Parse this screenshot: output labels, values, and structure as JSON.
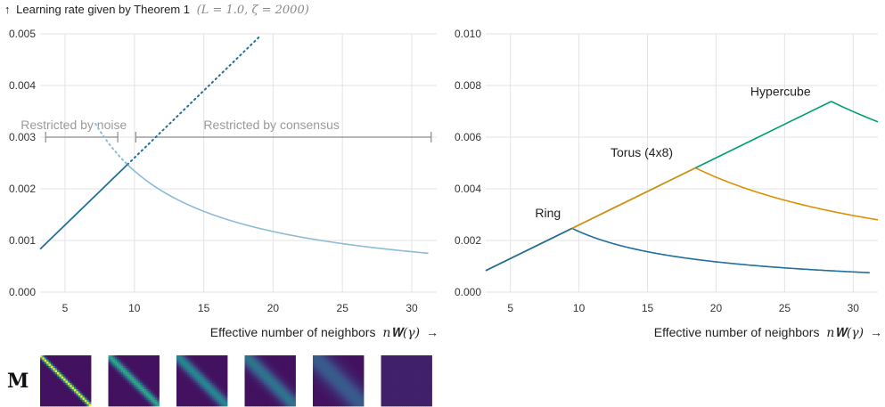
{
  "chart_data": [
    {
      "type": "line",
      "title_arrow": "↑",
      "title": "Learning rate given by Theorem 1",
      "title_math": "(L = 1.0, ζ = 2000)",
      "xlabel": "Effective number of neighbors",
      "xlabel_math": "n𝐖(γ)",
      "xlabel_arrow": "→",
      "xlim": [
        3.2,
        31.8
      ],
      "ylim": [
        0,
        0.005
      ],
      "xticks": [
        5,
        10,
        15,
        20,
        25,
        30
      ],
      "xtick_labels": [
        "5",
        "10",
        "15",
        "20",
        "25",
        "30"
      ],
      "yticks": [
        0,
        0.001,
        0.002,
        0.003,
        0.004,
        0.005
      ],
      "ytick_labels": [
        "0.000",
        "0.001",
        "0.002",
        "0.003",
        "0.004",
        "0.005"
      ],
      "grid": true,
      "peak_x": 9.5,
      "peak_y": 0.00247,
      "noise_line": {
        "x_start": 3.2,
        "x_end": 9.5,
        "color": "#1f6f9f"
      },
      "noise_line_extension": {
        "x_start": 9.5,
        "x_end": 20.0,
        "color": "#1f6f9f",
        "dashed": true
      },
      "consensus_curve": {
        "x_start": 9.5,
        "x_end": 31.2,
        "color": "#8bbcd6"
      },
      "consensus_curve_extension": {
        "x_start": 7.2,
        "x_end": 9.5,
        "color": "#8bbcd6",
        "dashed": true
      },
      "annotations": [
        {
          "text": "Restricted by noise",
          "x_from": 3.6,
          "x_to": 8.8,
          "y": 0.003
        },
        {
          "text": "Restricted by consensus",
          "x_from": 10.1,
          "x_to": 31.4,
          "y": 0.003
        }
      ]
    },
    {
      "type": "line",
      "xlabel": "Effective number of neighbors",
      "xlabel_math": "n𝐖(γ)",
      "xlabel_arrow": "→",
      "xlim": [
        3.2,
        31.8
      ],
      "ylim": [
        0,
        0.01
      ],
      "xticks": [
        5,
        10,
        15,
        20,
        25,
        30
      ],
      "xtick_labels": [
        "5",
        "10",
        "15",
        "20",
        "25",
        "30"
      ],
      "yticks": [
        0,
        0.002,
        0.004,
        0.006,
        0.008,
        0.01
      ],
      "ytick_labels": [
        "0.000",
        "0.002",
        "0.004",
        "0.006",
        "0.008",
        "0.010"
      ],
      "grid": true,
      "slope": 0.00026,
      "series": [
        {
          "name": "Ring",
          "color": "#1f6f9f",
          "peak_x": 9.5,
          "x_end": 31.2,
          "label_x": 6.8,
          "label_y": 0.0029
        },
        {
          "name": "Torus (4x8)",
          "color": "#de8f05",
          "peak_x": 18.5,
          "x_end": 31.8,
          "label_x": 12.3,
          "label_y": 0.00525
        },
        {
          "name": "Hypercube",
          "color": "#029e73",
          "peak_x": 28.4,
          "x_end": 31.8,
          "label_x": 22.5,
          "label_y": 0.0076
        }
      ]
    }
  ],
  "matrix_label": "M",
  "matrices": [
    {
      "name": "matrix-1",
      "sigma": 0.035,
      "peak": 1.0
    },
    {
      "name": "matrix-2",
      "sigma": 0.07,
      "peak": 0.55
    },
    {
      "name": "matrix-3",
      "sigma": 0.1,
      "peak": 0.42
    },
    {
      "name": "matrix-4",
      "sigma": 0.14,
      "peak": 0.34
    },
    {
      "name": "matrix-5",
      "sigma": 0.22,
      "peak": 0.24
    },
    {
      "name": "matrix-6",
      "sigma": 0,
      "peak": 0.0
    }
  ]
}
